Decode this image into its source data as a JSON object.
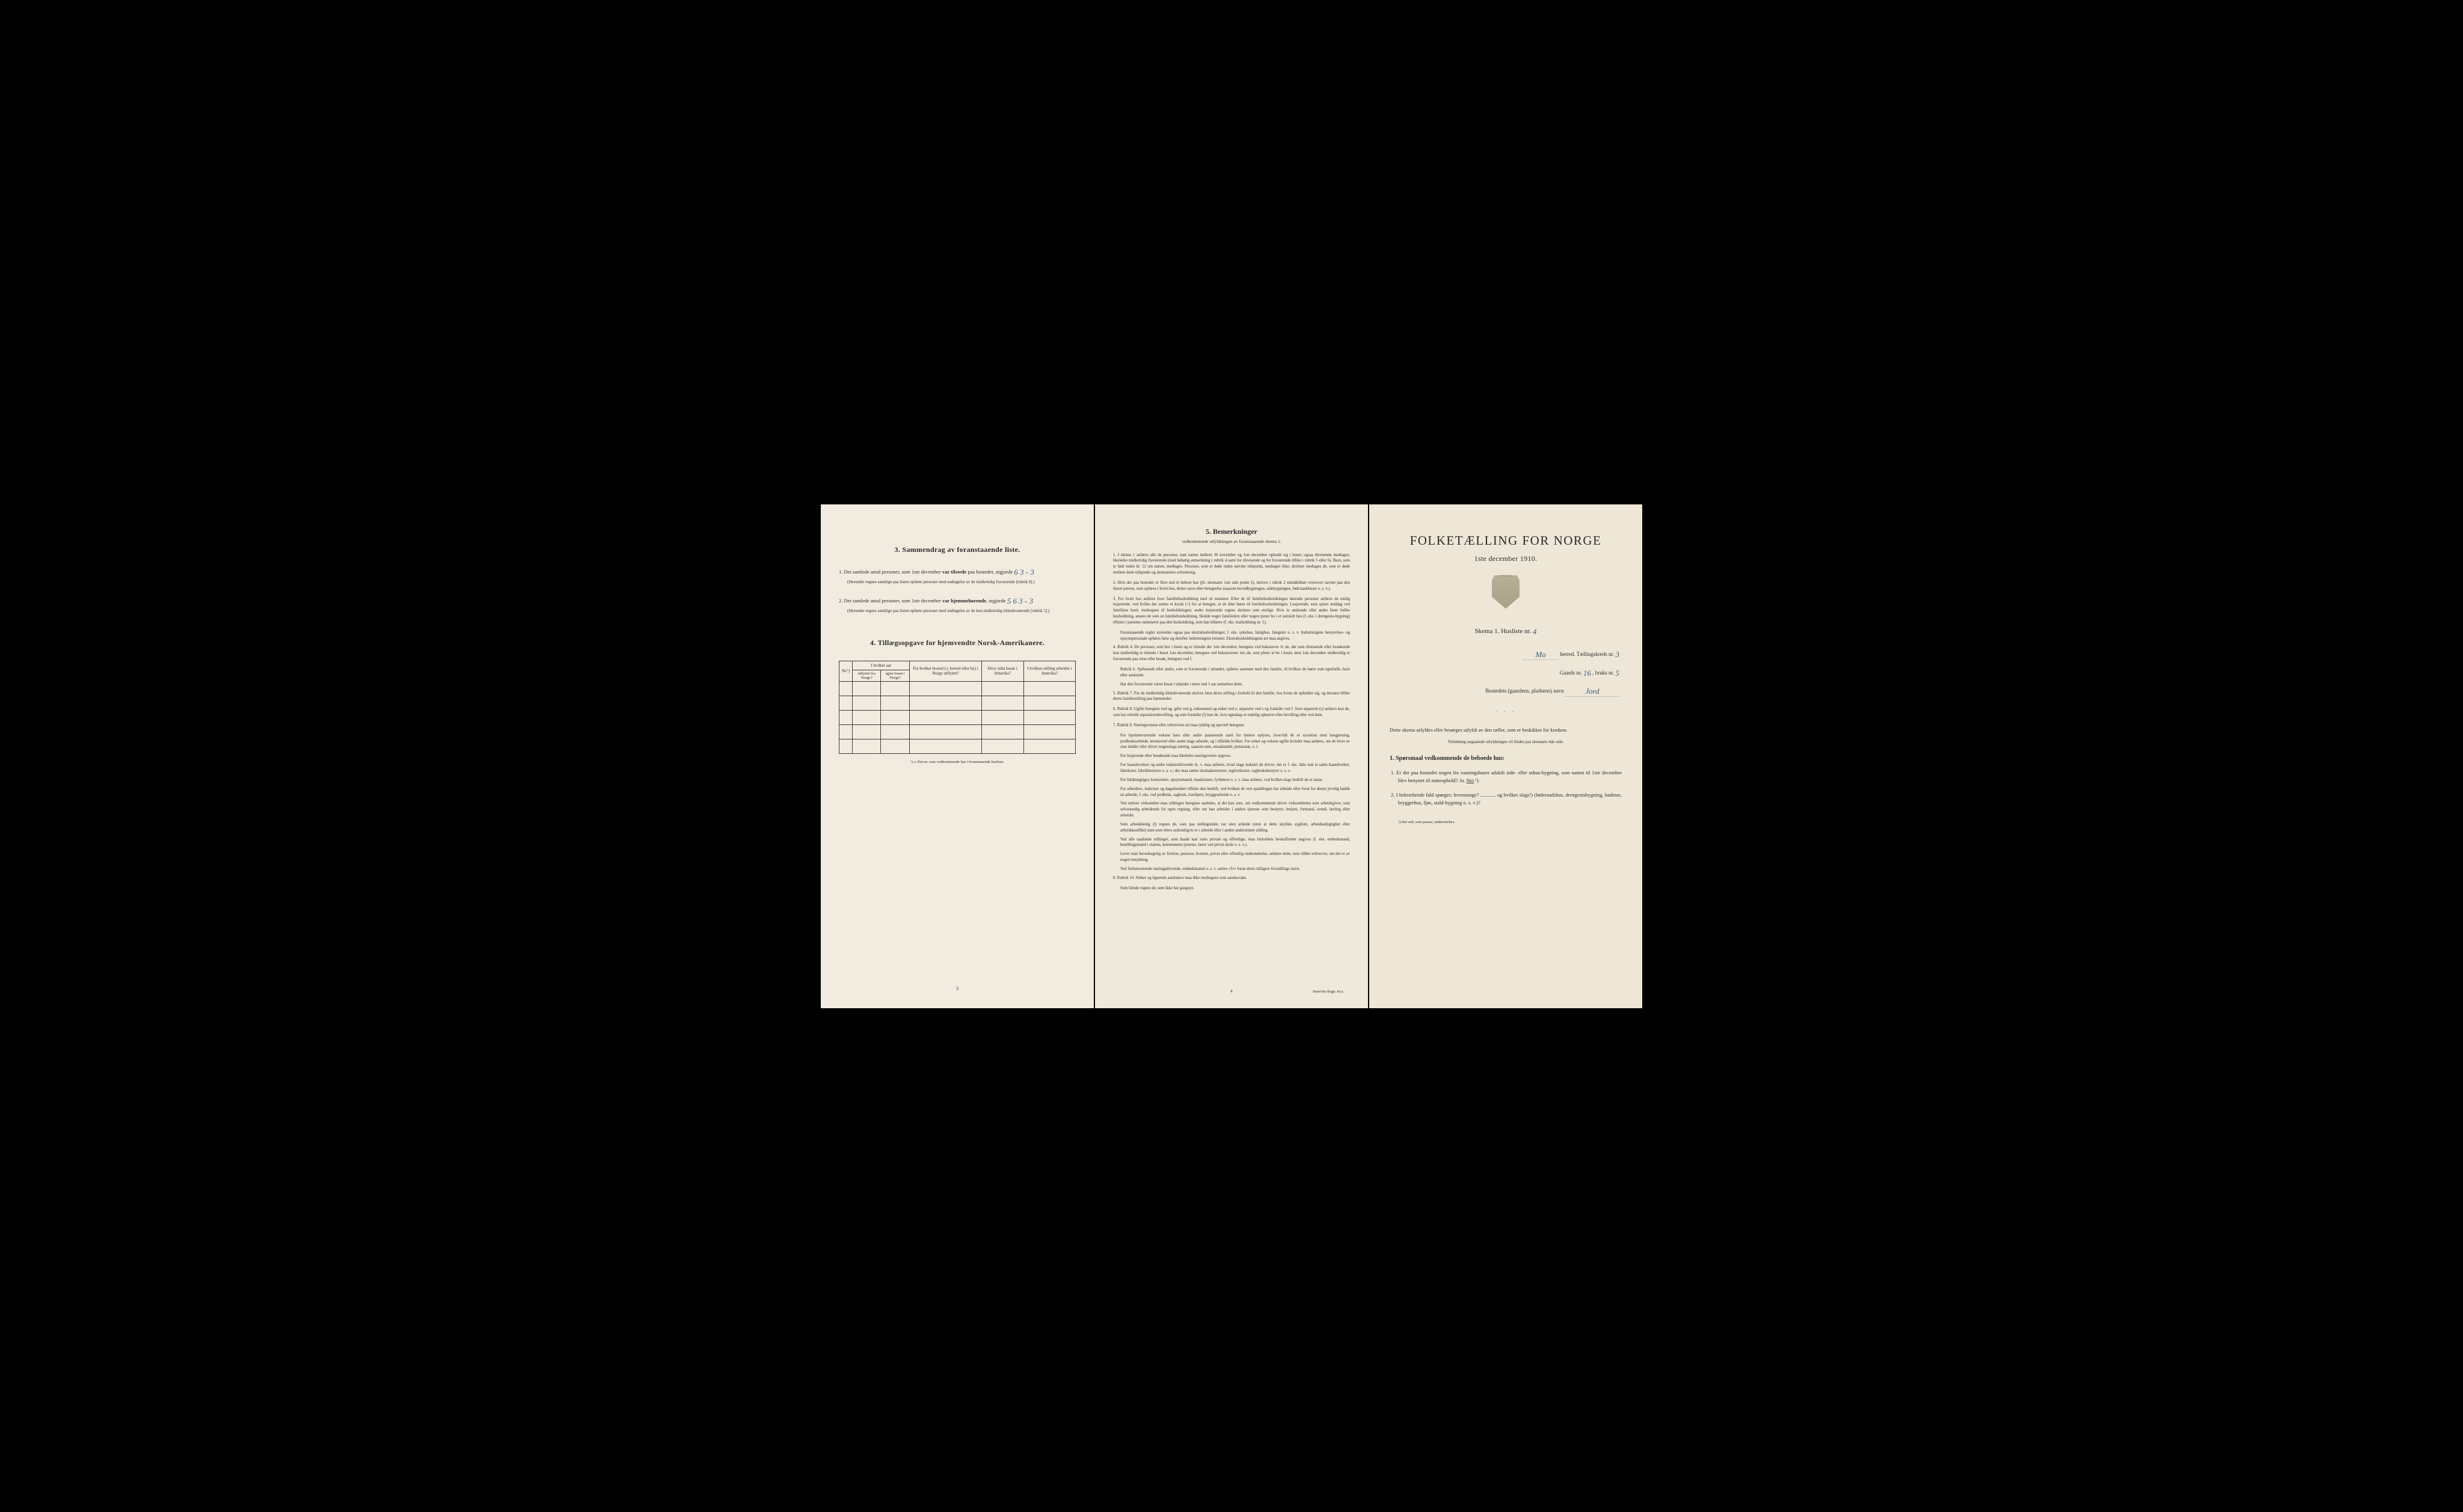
{
  "left": {
    "section3_title": "3.  Sammendrag av foranstaaende liste.",
    "item1_pre": "1.  Det samlede antal personer, som 1ste december ",
    "item1_bold": "var tilstede",
    "item1_post": " paa bostedet, utgjorde",
    "item1_val": "6   3 - 3",
    "item1_fine": "(Herunder regnes samtlige paa listen opførte personer med undtagelse av de midlertidig fraværende [rubrik 6].)",
    "item2_pre": "2.  Det samlede antal personer, som 1ste december ",
    "item2_bold": "var hjemmehørende",
    "item2_post": ", utgjorde",
    "item2_val": "5 6   3 - 3",
    "item2_fine": "(Herunder regnes samtlige paa listen opførte personer med undtagelse av de kun midlertidig tilstedeværende [rubrik 5].)",
    "section4_title": "4.  Tillægsopgave for hjemvendte Norsk-Amerikanere.",
    "table": {
      "col_nr": "Nr.¹)",
      "col_group": "I hvilket aar",
      "col_utflyttet": "utflyttet fra Norge?",
      "col_igjen": "igjen bosat i Norge?",
      "col_fra": "Fra hvilket bosted (ɔ: herred eller by) i Norge utflyttet?",
      "col_hvor": "Hvor sidst bosat i Amerika?",
      "col_stilling": "I hvilken stilling arbeidet i Amerika?",
      "blank_rows": 5
    },
    "footnote": "¹) ɔ: Det nr. som vedkommende har i foranstaaende husliste.",
    "page_num": "3"
  },
  "center": {
    "title": "5.  Bemerkninger",
    "subtitle": "vedkommende utfyldningen av foranstaaende skema 1.",
    "rules": [
      "1.  I skema 1 anføres alle de personer, som natten mellem 30 november og 1ste december opholdt sig i huset; ogsaa tilreisende medtages; likeledes midlertidig fraværende (med behørig anmerkning i rubrik 4 samt for tilreisende og for fraværende tillike i rubrik 5 eller 6). Barn, som er født inden kl. 12 om natten, medtages. Personer, som er døde inden nævnte tidspunkt, medtages ikke; derimot medtages de, som er døde mellem dette tidspunkt og skemaernes avhentning.",
      "2.  Hvis der paa bostedet er flere end ét beboet hus (jfr. skemaets 1ste side punkt 2), skrives i rubrik 2 umiddelbart ovenover navnet paa den første person, som opføres i hvert hus, dettes navn eller betegnelse (saasom hovedbygningen, sidebygningen, føderaadshuset o. s. v.).",
      "3.  For hvert hus anføres hver familiehusholdning med sit nummer. Efter de til familiehusholdningen hørende personer anføres de enslig losjerende, ved hvilke der sættes et kryds (×) for at betegne, at de ikke hører til familiehusholdningen. Losjerende, som spiser middag ved familiens bord, medregnes til husholdningen; andre losjerende regnes derimot som enslige. Hvis to søskende eller andre fører fælles husholdning, ansees de som en familiehusholdning. Skulde noget familielem eller nogen tjener bo i et særskilt hus (f. eks. i drengestu-bygning) tilføies i parentes nummeret paa den husholdning, som han tilhører (f. eks. husholdning nr. 1).",
      "    Foranstaaende regler anvendes ogsaa paa ekstrahusholdninger, f. eks. sykehus, fattighus, fængsler o. s. v. Indretningens bestyrelses- og opsynspersonale opføres først og derefter indretningens lemmer. Ekstrahusholdningens art maa angives.",
      "4.  Rubrik 4. De personer, som bor i huset og er tilstede der 1ste december, betegnes ved bokstaven: b; de, der som tilreisende eller besøkende kun midlertidig er tilstede i huset 1ste december, betegnes ved bokstaverne: mt; de, som pleier at bo i huset, men 1ste december midlertidig er fraværende paa reise eller besøk, betegnes ved f.",
      "    Rubrik 6. Sjøfarende eller andre, som er fraværende i utlandet, opføres sammen med den familie, til hvilken de hører som egtefælle, barn eller søskende.",
      "    Har den fraværende været bosat i utlandet i mere end 1 aar anmerkes dette.",
      "5.  Rubrik 7. For de midlertidig tilstedeværende skrives først deres stilling i forhold til den familie, hos hvem de opholder sig, og dernæst tillike deres familiestilling paa hjemstedet.",
      "6.  Rubrik 8. Ugifte betegnes ved ug, gifte ved g, enkemænd og enker ved e, separerte ved s og fraskilte ved f. Som separerte (s) anføres kun de, som har erholdt separationsbevilling, og som fraskilte (f) kun de, hvis egteskap er endelig ophævet efter bevilling eller ved dom.",
      "7.  Rubrik 9. Næringsveiens eller erhvervets art maa tydelig og specielt betegnes.",
      "    For hjemmeværende voksne barn eller andre paarørende samt for tjenere oplyses, hvorvidt de er sysselsat med husgjerning, jordbruksarbeide, kreaturstel eller andet slags arbeide, og i tilfælde hvilket. For enker og voksne ugifte kvinder maa anføres, om de lever av sine midler eller driver nogenslags næring, saasom søm, smaahandel, pensionat, o. l.",
      "    For losjerende eller besøkende maa likeledes næringsveien opgives.",
      "    For haandverkere og andre industridrivende m. v. maa anføres, hvad slags industri de driver; det er f. eks. ikke nok at sætte haandverker, fabrikeier, fabrikbestyrer o. a. v.; der maa sættes skomakermester, teglverkseier, sagbruksbestyrer o. s. v.",
      "    For fuldmægtiger, kontorister, opsynsmænd, maskinister, fyrbøtere o. s. v. maa anføres, ved hvilket slags bedrift de er ansat.",
      "    For arbeidere, inderster og dagarbeidere tilføies den bedrift, ved hvilken de ved optællingen har arbeide eller forut for denne jevnlig hadde sit arbeide, f. eks. ved jordbruk, sagbruk, træsliperi, bryggearbeide o. s. v.",
      "    Ved enhver virksomhet maa stillingen betegnes saaledes, at det kan sees, om vedkommende driver virksomheten som arbeidsgiver, som selvstændig arbeidende for egen regning, eller om han arbeider i andres tjeneste som bestyrer, betjent, formand, svend, lærling eller arbeider.",
      "    Som arbeidsledig (l) regnes de, som paa tællingstiden var uten arbeide (uten at dette skyldes sygdom, arbeidsudygtighet eller arbeidskonflikt) men som ellers sedvanligvis er i arbeide eller i anden underordnet stilling.",
      "    Ved alle saadanne stillinger, som baade kan være private og offentlige, maa forholdets beskaffenhet angives (f. eks. embedsmand, bestillingsmand i statens, kommunens tjeneste, lærer ved privat skole o. s. v.).",
      "    Lever man hovedsagelig av formue, pension, livrente, privat eller offentlig understøttelse, anføres dette, men tillike erhvervet, om det er av nogen betydning.",
      "    Ved forhenværende næringsdrivende, embedsmænd o. s. v. sættes «fv» foran deres tidligere livsstillings navn.",
      "8.  Rubrik 14. Sinker og lignende aandsløve maa ikke medregnes som aandssvake.",
      "    Som blinde regnes de, som ikke har gangsyn."
    ],
    "page_num": "4",
    "printer": "Steen'ske Bogtr. Kr.a."
  },
  "right": {
    "title": "FOLKETÆLLING FOR NORGE",
    "date": "1ste december 1910.",
    "schema_label": "Skema 1.   Husliste nr.",
    "husliste_nr": "4",
    "herred_label": "herred.  Tællingskreds nr.",
    "herred_val": "Mo",
    "kreds_nr": "3",
    "gaards_label": "Gaards nr.",
    "gaards_nr": "16",
    "bruks_label": ", bruks nr.",
    "bruks_nr": "5",
    "bosted_label": "Bostedets (gaardens, pladsens) navn",
    "bosted_val": "Jord",
    "instruction": "Dette skema utfyldes eller besørges utfyldt av den tæller, som er beskikket for kredsen.",
    "instruction_small": "Veiledning angaaende utfyldningen vil findes paa skemaets 4de side.",
    "q_heading": "1. Spørsmaal vedkommende de beboede hus:",
    "q1": "1.  Er der paa bostedet nogen fra vaaningshuset adskilt side- eller uthus-bygning, som natten til 1ste december blev benyttet til natteophold?   Ja.   Nei ¹).",
    "q2": "2.  I bekræftende fald spørges: hvormange? ............ og hvilket slags¹) (føderaadshus, drengestubygning, badstue, bryggerhus, fjøs, stald-bygning o. s. v.)?",
    "footnote": "¹) Det ord, som passer, understrekes."
  },
  "colors": {
    "bg_left": "#f2ece0",
    "bg_center": "#efe9db",
    "bg_right": "#eee7d7",
    "text": "#2a2a2a",
    "handwritten": "#3a5a7a",
    "border": "#3a3a3a"
  }
}
